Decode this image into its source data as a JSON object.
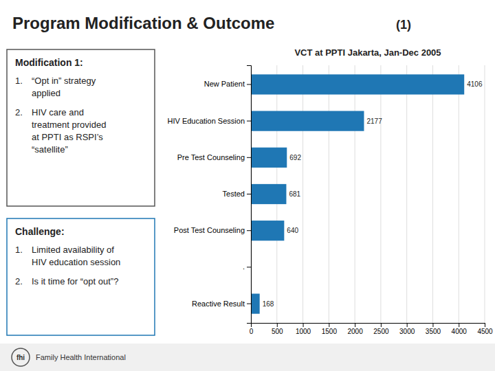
{
  "page_title": "Program Modification & Outcome",
  "page_title_suffix": "(1)",
  "panels": [
    {
      "title": "Modification 1:",
      "items": [
        {
          "number": "1.",
          "lines": [
            "“Opt in” strategy",
            "applied"
          ]
        },
        {
          "number": "2.",
          "lines": [
            "HIV care and",
            "treatment provided",
            "at PPTI as RSPI’s",
            "“satellite”"
          ]
        }
      ]
    },
    {
      "title": "Challenge:",
      "items": [
        {
          "number": "1.",
          "lines": [
            "Limited availability of",
            "HIV education session"
          ]
        },
        {
          "number": "2.",
          "lines": [
            "Is it time for “opt out”?"
          ]
        }
      ]
    }
  ],
  "footer": [
    "fhi",
    "Family Health International"
  ],
  "chart_data": {
    "type": "bar",
    "orientation": "horizontal",
    "title": "VCT at PPTI Jakarta, Jan-Dec 2005",
    "categories": [
      "New Patient",
      "HIV Education Session",
      "Pre Test Counseling",
      "Tested",
      "Post Test Counseling",
      ".",
      "Reactive Result"
    ],
    "values": [
      4106,
      2177,
      692,
      681,
      640,
      null,
      168
    ],
    "xlim": [
      0,
      4500
    ],
    "xticks": [
      0,
      500,
      1000,
      1500,
      2000,
      2500,
      3000,
      3500,
      4000,
      4500
    ],
    "grid": true,
    "data_labels": true
  }
}
